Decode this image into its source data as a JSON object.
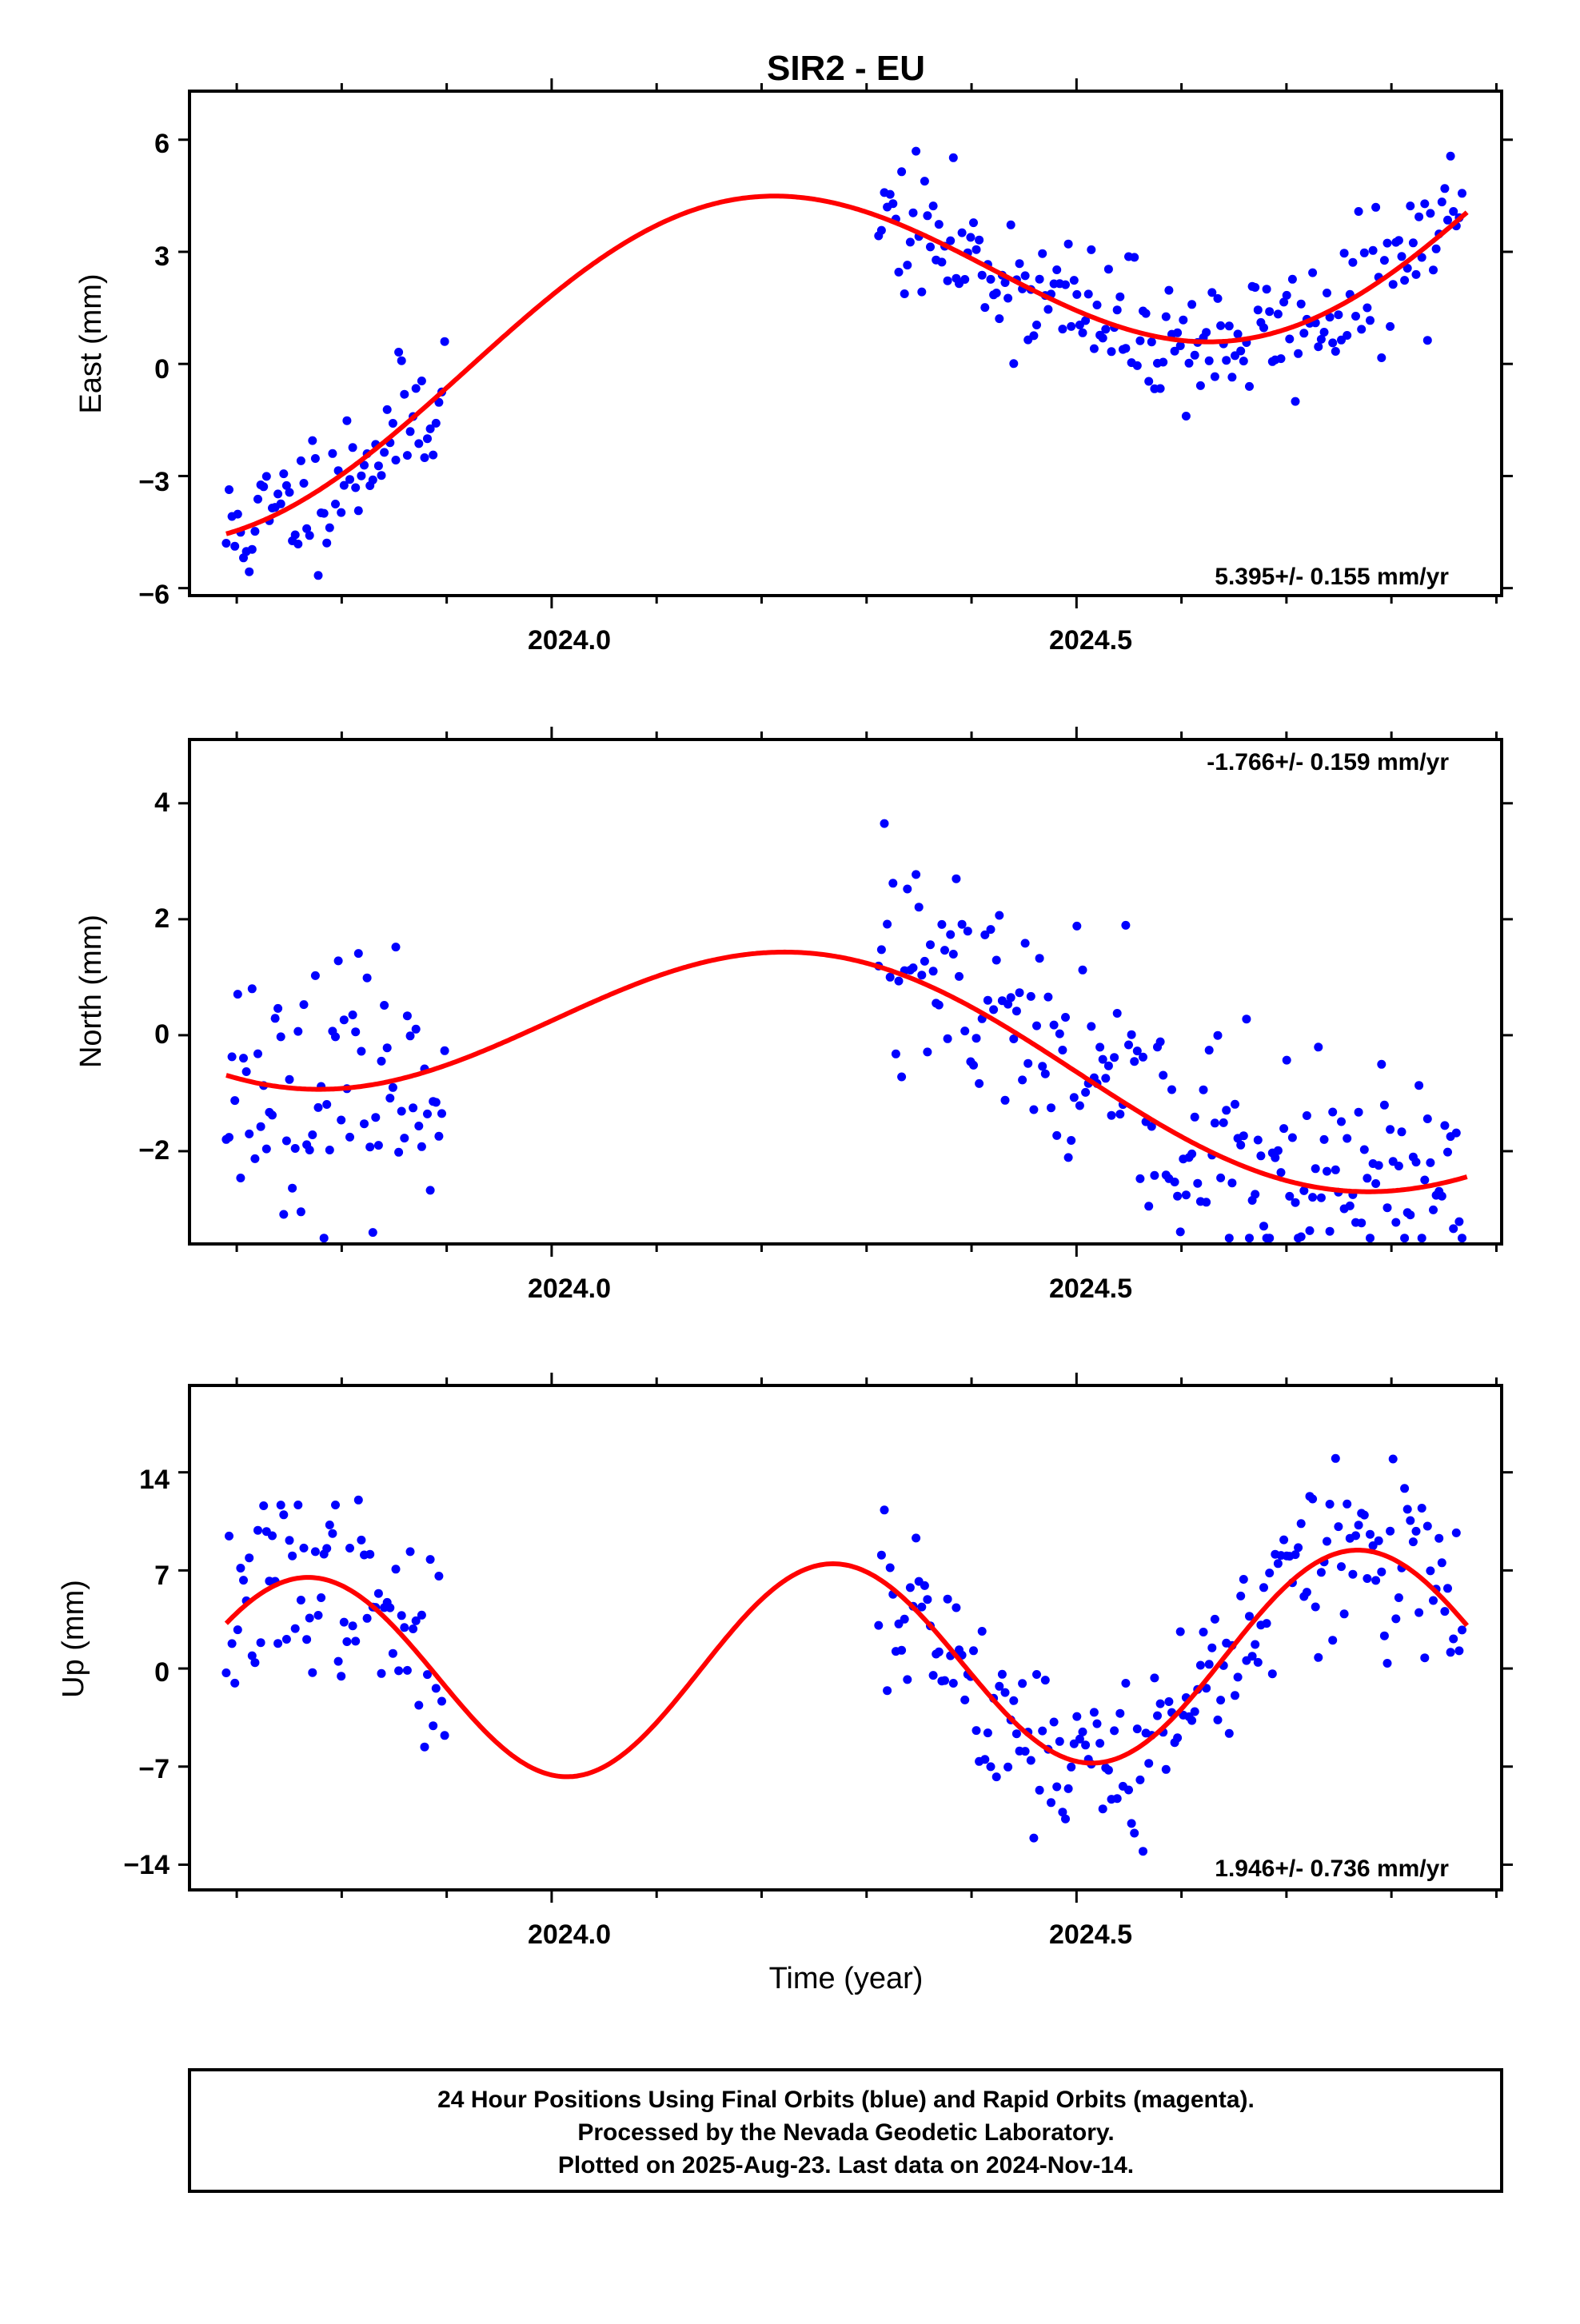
{
  "chart_data": [
    {
      "type": "scatter",
      "title": "SIR2 - EU",
      "ylabel": "East (mm)",
      "xlabel": "",
      "annotation": "5.395+/- 0.155 mm/yr",
      "xlim": [
        2023.655,
        2024.905
      ],
      "ylim": [
        -6.2,
        7.3
      ],
      "y_ticks": [
        -6,
        -3,
        0,
        3,
        6
      ],
      "y_tick_labels": [
        "−6",
        "−3",
        "0",
        "3",
        "6"
      ],
      "x_ticks": [
        2024.0,
        2024.5
      ],
      "x_tick_labels": [
        "2024.0",
        "2024.5"
      ],
      "grid": false,
      "series": [
        {
          "style": "points",
          "color": "#0000ff",
          "gaps": [
            [
              2023.9,
              2024.31
            ]
          ],
          "model": {
            "c": 0.28,
            "r": 5.395,
            "ac": 1.55,
            "as": 2.78,
            "sc": 0.0,
            "ss": 0.0
          },
          "noise": 0.9,
          "seed": 11
        },
        {
          "style": "line",
          "color": "#ff0000",
          "model": {
            "c": 0.28,
            "r": 5.395,
            "ac": 1.55,
            "as": 2.78,
            "sc": 0.0,
            "ss": 0.0
          }
        }
      ]
    },
    {
      "type": "scatter",
      "title": "",
      "ylabel": "North (mm)",
      "xlabel": "",
      "annotation": "-1.766+/- 0.159 mm/yr",
      "xlim": [
        2023.655,
        2024.905
      ],
      "ylim": [
        -3.6,
        5.1
      ],
      "y_ticks": [
        -2,
        0,
        2,
        4
      ],
      "y_tick_labels": [
        "−2",
        "0",
        "2",
        "4"
      ],
      "x_ticks": [
        2024.0,
        2024.5
      ],
      "x_tick_labels": [
        "2024.0",
        "2024.5"
      ],
      "grid": false,
      "series": [
        {
          "style": "points",
          "color": "#0000ff",
          "gaps": [
            [
              2023.9,
              2024.31
            ]
          ],
          "model": {
            "c": 0.25,
            "r": -1.766,
            "ac": 0.0,
            "as": 1.6,
            "sc": 0.0,
            "ss": 0.0
          },
          "noise": 1.0,
          "seed": 23
        },
        {
          "style": "line",
          "color": "#ff0000",
          "model": {
            "c": 0.25,
            "r": -1.766,
            "ac": 0.0,
            "as": 1.6,
            "sc": 0.0,
            "ss": 0.0
          }
        }
      ]
    },
    {
      "type": "scatter",
      "title": "",
      "ylabel": "Up (mm)",
      "xlabel": "Time (year)",
      "annotation": "1.946+/- 0.736 mm/yr",
      "xlim": [
        2023.655,
        2024.905
      ],
      "ylim": [
        -15.8,
        20.2
      ],
      "y_ticks": [
        -14,
        -7,
        0,
        7,
        14
      ],
      "y_tick_labels": [
        "−14",
        "−7",
        "0",
        "7",
        "14"
      ],
      "x_ticks": [
        2024.0,
        2024.5
      ],
      "x_tick_labels": [
        "2024.0",
        "2024.5"
      ],
      "grid": false,
      "series": [
        {
          "style": "points",
          "color": "#0000ff",
          "gaps": [
            [
              2023.9,
              2024.31
            ]
          ],
          "model": {
            "c": -0.4,
            "r": 1.946,
            "ac": 0.0,
            "as": 0.0,
            "sc": -7.2,
            "ss": -1.5
          },
          "noise": 3.2,
          "seed": 37
        },
        {
          "style": "line",
          "color": "#ff0000",
          "model": {
            "c": -0.4,
            "r": 1.946,
            "ac": 0.0,
            "as": 0.0,
            "sc": -7.2,
            "ss": -1.5
          }
        }
      ]
    }
  ],
  "footer": {
    "line1": "24 Hour Positions Using Final Orbits (blue) and Rapid Orbits (magenta).",
    "line2": "Processed by the Nevada Geodetic Laboratory.",
    "line3": "Plotted on 2025-Aug-23. Last data on 2024-Nov-14."
  }
}
